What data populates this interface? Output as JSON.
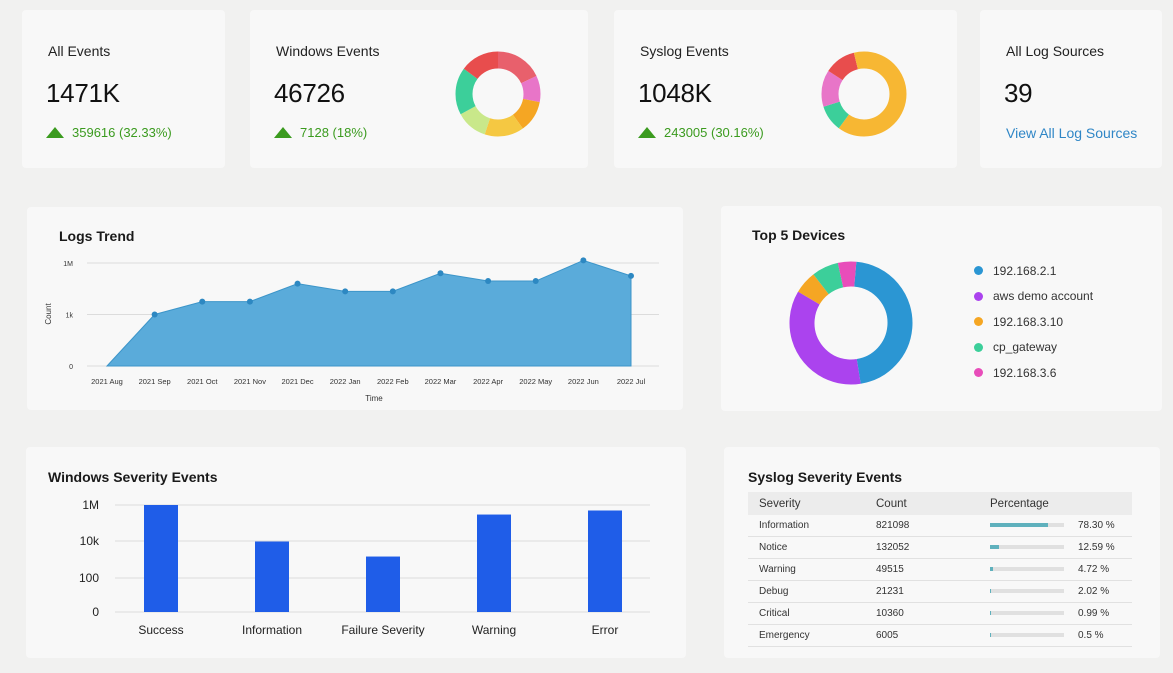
{
  "kpis": {
    "all_events": {
      "title": "All Events",
      "value": "1471K",
      "delta": "359616 (32.33%)"
    },
    "windows_events": {
      "title": "Windows Events",
      "value": "46726",
      "delta": "7128 (18%)"
    },
    "syslog_events": {
      "title": "Syslog Events",
      "value": "1048K",
      "delta": "243005 (30.16%)"
    },
    "log_sources": {
      "title": "All Log Sources",
      "value": "39",
      "link": "View All Log Sources"
    }
  },
  "colors": {
    "accent": "#2f86c6",
    "positive": "#3b9b1f",
    "area_fill": "#5aabda",
    "bar": "#1f5de8",
    "table_bar": "#5fb1bd"
  },
  "windows_donut": {
    "segments": [
      {
        "color": "#e8606c",
        "value": 18
      },
      {
        "color": "#e875c8",
        "value": 10
      },
      {
        "color": "#f5a623",
        "value": 12
      },
      {
        "color": "#f5c842",
        "value": 15
      },
      {
        "color": "#c9e88a",
        "value": 12
      },
      {
        "color": "#3ccf9a",
        "value": 18
      },
      {
        "color": "#e84d4d",
        "value": 15
      }
    ]
  },
  "syslog_donut": {
    "segments": [
      {
        "color": "#f7b733",
        "value": 60
      },
      {
        "color": "#3ccf9a",
        "value": 10
      },
      {
        "color": "#e875c8",
        "value": 14
      },
      {
        "color": "#e84d4d",
        "value": 12
      },
      {
        "color": "#f7b733",
        "value": 4
      }
    ]
  },
  "logs_trend": {
    "title": "Logs Trend"
  },
  "top_devices": {
    "title": "Top 5 Devices"
  },
  "windows_severity": {
    "title": "Windows Severity Events"
  },
  "syslog_severity": {
    "title": "Syslog Severity Events",
    "columns": [
      "Severity",
      "Count",
      "Percentage"
    ],
    "rows": [
      {
        "severity": "Information",
        "count": "821098",
        "percent": "78.30 %",
        "value": 78.3
      },
      {
        "severity": "Notice",
        "count": "132052",
        "percent": "12.59 %",
        "value": 12.59
      },
      {
        "severity": "Warning",
        "count": "49515",
        "percent": "4.72 %",
        "value": 4.72
      },
      {
        "severity": "Debug",
        "count": "21231",
        "percent": "2.02 %",
        "value": 2.02
      },
      {
        "severity": "Critical",
        "count": "10360",
        "percent": "0.99 %",
        "value": 0.99
      },
      {
        "severity": "Emergency",
        "count": "6005",
        "percent": "0.5 %",
        "value": 0.5
      }
    ]
  },
  "chart_data": [
    {
      "type": "area",
      "title": "Logs Trend",
      "xlabel": "Time",
      "ylabel": "Count",
      "yticks": [
        "1M",
        "1k",
        "0"
      ],
      "categories": [
        "2021 Aug",
        "2021 Sep",
        "2021 Oct",
        "2021 Nov",
        "2021 Dec",
        "2022 Jan",
        "2022 Feb",
        "2022 Mar",
        "2022 Apr",
        "2022 May",
        "2022 Jun",
        "2022 Jul"
      ],
      "x": [
        "2021 Aug",
        "2021 Sep",
        "2021 Oct",
        "2021 Nov",
        "2021 Dec",
        "2022 Jan",
        "2022 Feb",
        "2022 Mar",
        "2022 Apr",
        "2022 May",
        "2022 Jun",
        "2022 Jul"
      ],
      "values": [
        0,
        1,
        1.25,
        1.25,
        1.6,
        1.45,
        1.45,
        1.8,
        1.65,
        1.65,
        2.05,
        1.75
      ],
      "ylim": [
        0,
        2
      ],
      "grid": true
    },
    {
      "type": "pie",
      "title": "Top 5 Devices",
      "labels": [
        "192.168.2.1",
        "aws demo account",
        "192.168.3.10",
        "cp_gateway",
        "192.168.3.6"
      ],
      "values": [
        46,
        36,
        6,
        7,
        5
      ],
      "colors": [
        "#2b96d3",
        "#ab43ee",
        "#f5a623",
        "#3ccf9a",
        "#e84dba"
      ],
      "legend": "right"
    },
    {
      "type": "bar",
      "title": "Windows Severity Events",
      "categories": [
        "Success",
        "Information",
        "Failure Severity",
        "Warning",
        "Error"
      ],
      "values": [
        1000000,
        10000,
        1500,
        300000,
        500000
      ],
      "yticks": [
        "1M",
        "10k",
        "100",
        "0"
      ],
      "scale": "log",
      "grid": true
    }
  ]
}
